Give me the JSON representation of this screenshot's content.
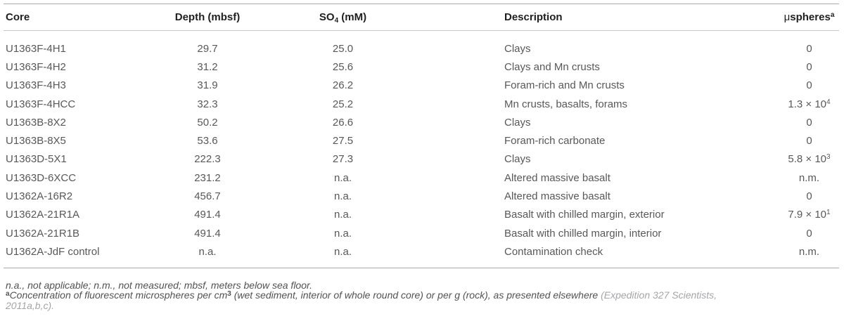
{
  "table": {
    "header": {
      "core": "Core",
      "depth": "Depth (mbsf)",
      "so4_base": "SO",
      "so4_sub": "4",
      "so4_unit": " (mM)",
      "description": "Description",
      "microspheres_mu": "μ",
      "microspheres_base": "spheres",
      "microspheres_sup": "a"
    },
    "rows": [
      {
        "core": "U1363F-4H1",
        "depth": "29.7",
        "so4": "25.0",
        "desc": "Clays",
        "usph": "0",
        "usph_sup": ""
      },
      {
        "core": "U1363F-4H2",
        "depth": "31.2",
        "so4": "25.6",
        "desc": "Clays and Mn crusts",
        "usph": "0",
        "usph_sup": ""
      },
      {
        "core": "U1363F-4H3",
        "depth": "31.9",
        "so4": "26.2",
        "desc": "Foram-rich and Mn crusts",
        "usph": "0",
        "usph_sup": ""
      },
      {
        "core": "U1363F-4HCC",
        "depth": "32.3",
        "so4": "25.2",
        "desc": "Mn crusts, basalts, forams",
        "usph": "1.3 × 10",
        "usph_sup": "4"
      },
      {
        "core": "U1363B-8X2",
        "depth": "50.2",
        "so4": "26.6",
        "desc": "Clays",
        "usph": "0",
        "usph_sup": ""
      },
      {
        "core": "U1363B-8X5",
        "depth": "53.6",
        "so4": "27.5",
        "desc": "Foram-rich carbonate",
        "usph": "0",
        "usph_sup": ""
      },
      {
        "core": "U1363D-5X1",
        "depth": "222.3",
        "so4": "27.3",
        "desc": "Clays",
        "usph": "5.8 × 10",
        "usph_sup": "3"
      },
      {
        "core": "U1363D-6XCC",
        "depth": "231.2",
        "so4": "n.a.",
        "desc": "Altered massive basalt",
        "usph": "n.m.",
        "usph_sup": ""
      },
      {
        "core": "U1362A-16R2",
        "depth": "456.7",
        "so4": "n.a.",
        "desc": "Altered massive basalt",
        "usph": "0",
        "usph_sup": ""
      },
      {
        "core": "U1362A-21R1A",
        "depth": "491.4",
        "so4": "n.a.",
        "desc": "Basalt with chilled margin, exterior",
        "usph": "7.9 × 10",
        "usph_sup": "1"
      },
      {
        "core": "U1362A-21R1B",
        "depth": "491.4",
        "so4": "n.a.",
        "desc": "Basalt with chilled margin, interior",
        "usph": "0",
        "usph_sup": ""
      },
      {
        "core": "U1362A-JdF control",
        "depth": "n.a.",
        "so4": "n.a.",
        "desc": "Contamination check",
        "usph": "n.m.",
        "usph_sup": ""
      }
    ]
  },
  "footnotes": {
    "abbreviations": "n.a., not applicable; n.m., not measured; mbsf, meters below sea floor.",
    "note_a_marker": "a",
    "note_a_text1": "Concentration of fluorescent microspheres per cm",
    "note_a_sup3": "3",
    "note_a_text2": " (wet sediment, interior of whole round core) or per g (rock), as presented elsewhere ",
    "citation_line1": "(Expedition 327 Scientists,",
    "citation_line2": "2011a,b,c)."
  },
  "colors": {
    "body_text": "#57585a",
    "header_text": "#1f1f21",
    "rule": "#a8aaac",
    "citation_gray": "#a3a5a8"
  }
}
